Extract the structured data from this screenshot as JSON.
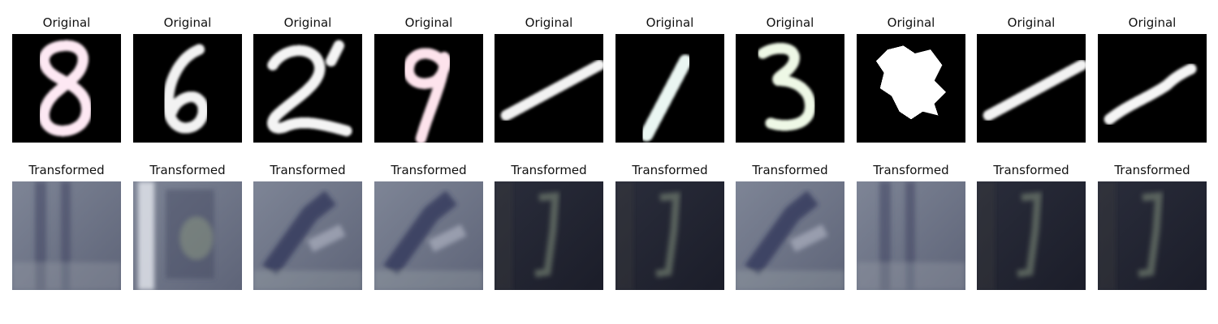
{
  "figure": {
    "rows": [
      {
        "id": "original",
        "panels": [
          {
            "title": "Original",
            "content": "digit-8",
            "tint": "#fde8f3"
          },
          {
            "title": "Original",
            "content": "digit-6",
            "tint": "#f2f2f2"
          },
          {
            "title": "Original",
            "content": "digit-2",
            "tint": "#f4f4f4"
          },
          {
            "title": "Original",
            "content": "digit-9",
            "tint": "#fde3ec"
          },
          {
            "title": "Original",
            "content": "digit-1-slanted",
            "tint": "#f2f2f2"
          },
          {
            "title": "Original",
            "content": "digit-1",
            "tint": "#eaf6f2"
          },
          {
            "title": "Original",
            "content": "digit-3",
            "tint": "#eef8e6"
          },
          {
            "title": "Original",
            "content": "blob",
            "tint": "#ffffff"
          },
          {
            "title": "Original",
            "content": "digit-1-slanted",
            "tint": "#f2f2f2"
          },
          {
            "title": "Original",
            "content": "digit-1-curved",
            "tint": "#f5f5f5"
          }
        ]
      },
      {
        "id": "transformed",
        "panels": [
          {
            "title": "Transformed",
            "style": "light-noise"
          },
          {
            "title": "Transformed",
            "style": "light-bar"
          },
          {
            "title": "Transformed",
            "style": "light-diag"
          },
          {
            "title": "Transformed",
            "style": "light-diag"
          },
          {
            "title": "Transformed",
            "style": "dark-seven"
          },
          {
            "title": "Transformed",
            "style": "dark-seven"
          },
          {
            "title": "Transformed",
            "style": "light-diag"
          },
          {
            "title": "Transformed",
            "style": "light-noise"
          },
          {
            "title": "Transformed",
            "style": "dark-seven"
          },
          {
            "title": "Transformed",
            "style": "dark-seven"
          }
        ]
      }
    ]
  }
}
